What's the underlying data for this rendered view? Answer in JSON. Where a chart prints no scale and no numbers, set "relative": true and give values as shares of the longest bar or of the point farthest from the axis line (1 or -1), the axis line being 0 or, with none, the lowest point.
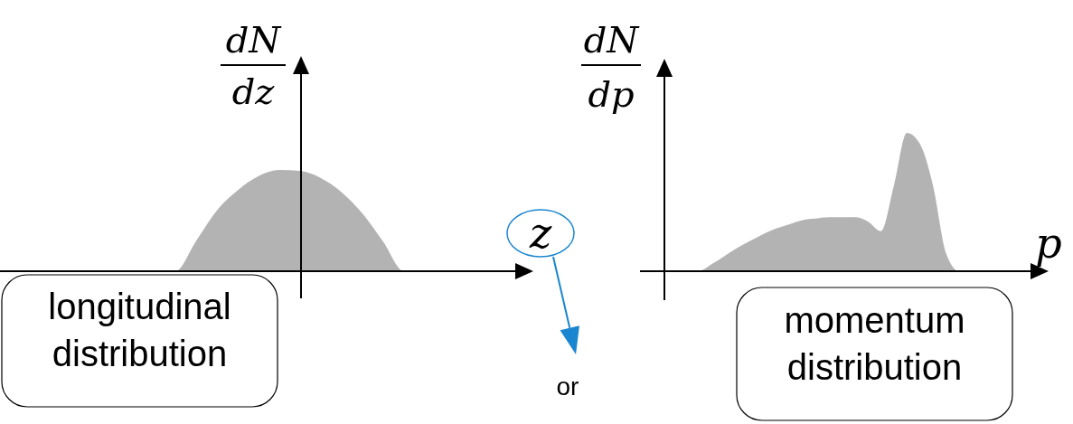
{
  "chart_data": [
    {
      "type": "area",
      "relative": true,
      "categories": [
        null,
        null,
        null,
        null,
        null,
        null,
        null,
        null,
        null,
        null,
        null,
        null,
        null,
        null,
        null,
        null,
        null,
        null,
        null,
        null,
        null,
        null,
        null,
        null,
        null
      ],
      "values": [
        0,
        0,
        0,
        0,
        0,
        0,
        0,
        0,
        0,
        0.3,
        0.6,
        0.8,
        0.94,
        1,
        0.99,
        0.92,
        0.78,
        0.57,
        0.29,
        0,
        0,
        0,
        0,
        0,
        0
      ],
      "color": "#b3b3b3",
      "xlabel": "z",
      "ylabel": "dN/dz",
      "annotations": [
        "longitudinal distribution",
        "or"
      ]
    },
    {
      "type": "area",
      "relative": true,
      "categories": [
        null,
        null,
        null,
        null,
        null,
        null,
        null,
        null,
        null,
        null,
        null,
        null,
        null,
        null,
        null,
        null,
        null,
        null,
        null,
        null,
        null,
        null,
        null,
        null,
        null,
        null,
        null,
        null,
        null,
        null
      ],
      "values": [
        0,
        0,
        0,
        0,
        0,
        0.05,
        0.11,
        0.17,
        0.22,
        0.27,
        0.31,
        0.34,
        0.37,
        0.38,
        0.39,
        0.39,
        0.39,
        0.36,
        0.29,
        0.62,
        1,
        0.92,
        0.62,
        0.13,
        0,
        0,
        0,
        0,
        0,
        0
      ],
      "color": "#b3b3b3",
      "xlabel": "p",
      "ylabel": "dN/dp",
      "annotations": [
        "momentum distribution"
      ]
    }
  ]
}
